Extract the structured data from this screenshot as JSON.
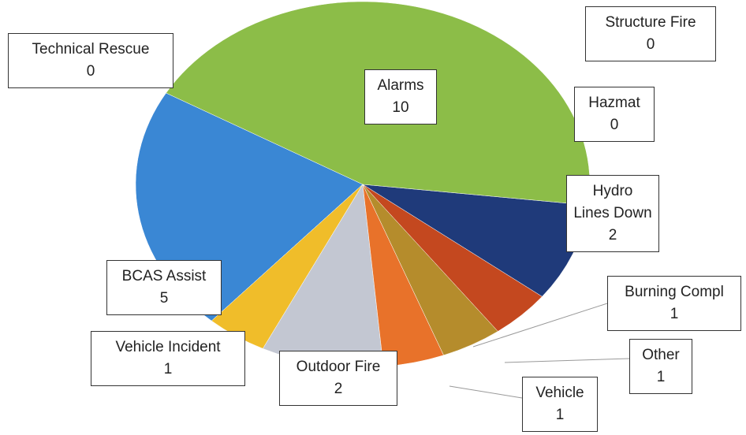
{
  "chart_data": {
    "type": "pie",
    "categories": [
      "Alarms",
      "Hydro Lines Down",
      "Burning Compl",
      "Other",
      "Vehicle",
      "Outdoor Fire",
      "Vehicle Incident",
      "BCAS Assist",
      "Technical Rescue",
      "Hazmat",
      "Structure Fire"
    ],
    "values": [
      10,
      2,
      1,
      1,
      1,
      2,
      1,
      5,
      0,
      0,
      0
    ],
    "colors": [
      "#8cbd48",
      "#1f3a7a",
      "#c4481f",
      "#b58c2c",
      "#e8722a",
      "#c3c7d2",
      "#f0bd2a",
      "#3a87d4",
      "#7a7a7a",
      "#7a7a7a",
      "#7a7a7a"
    ]
  }
}
